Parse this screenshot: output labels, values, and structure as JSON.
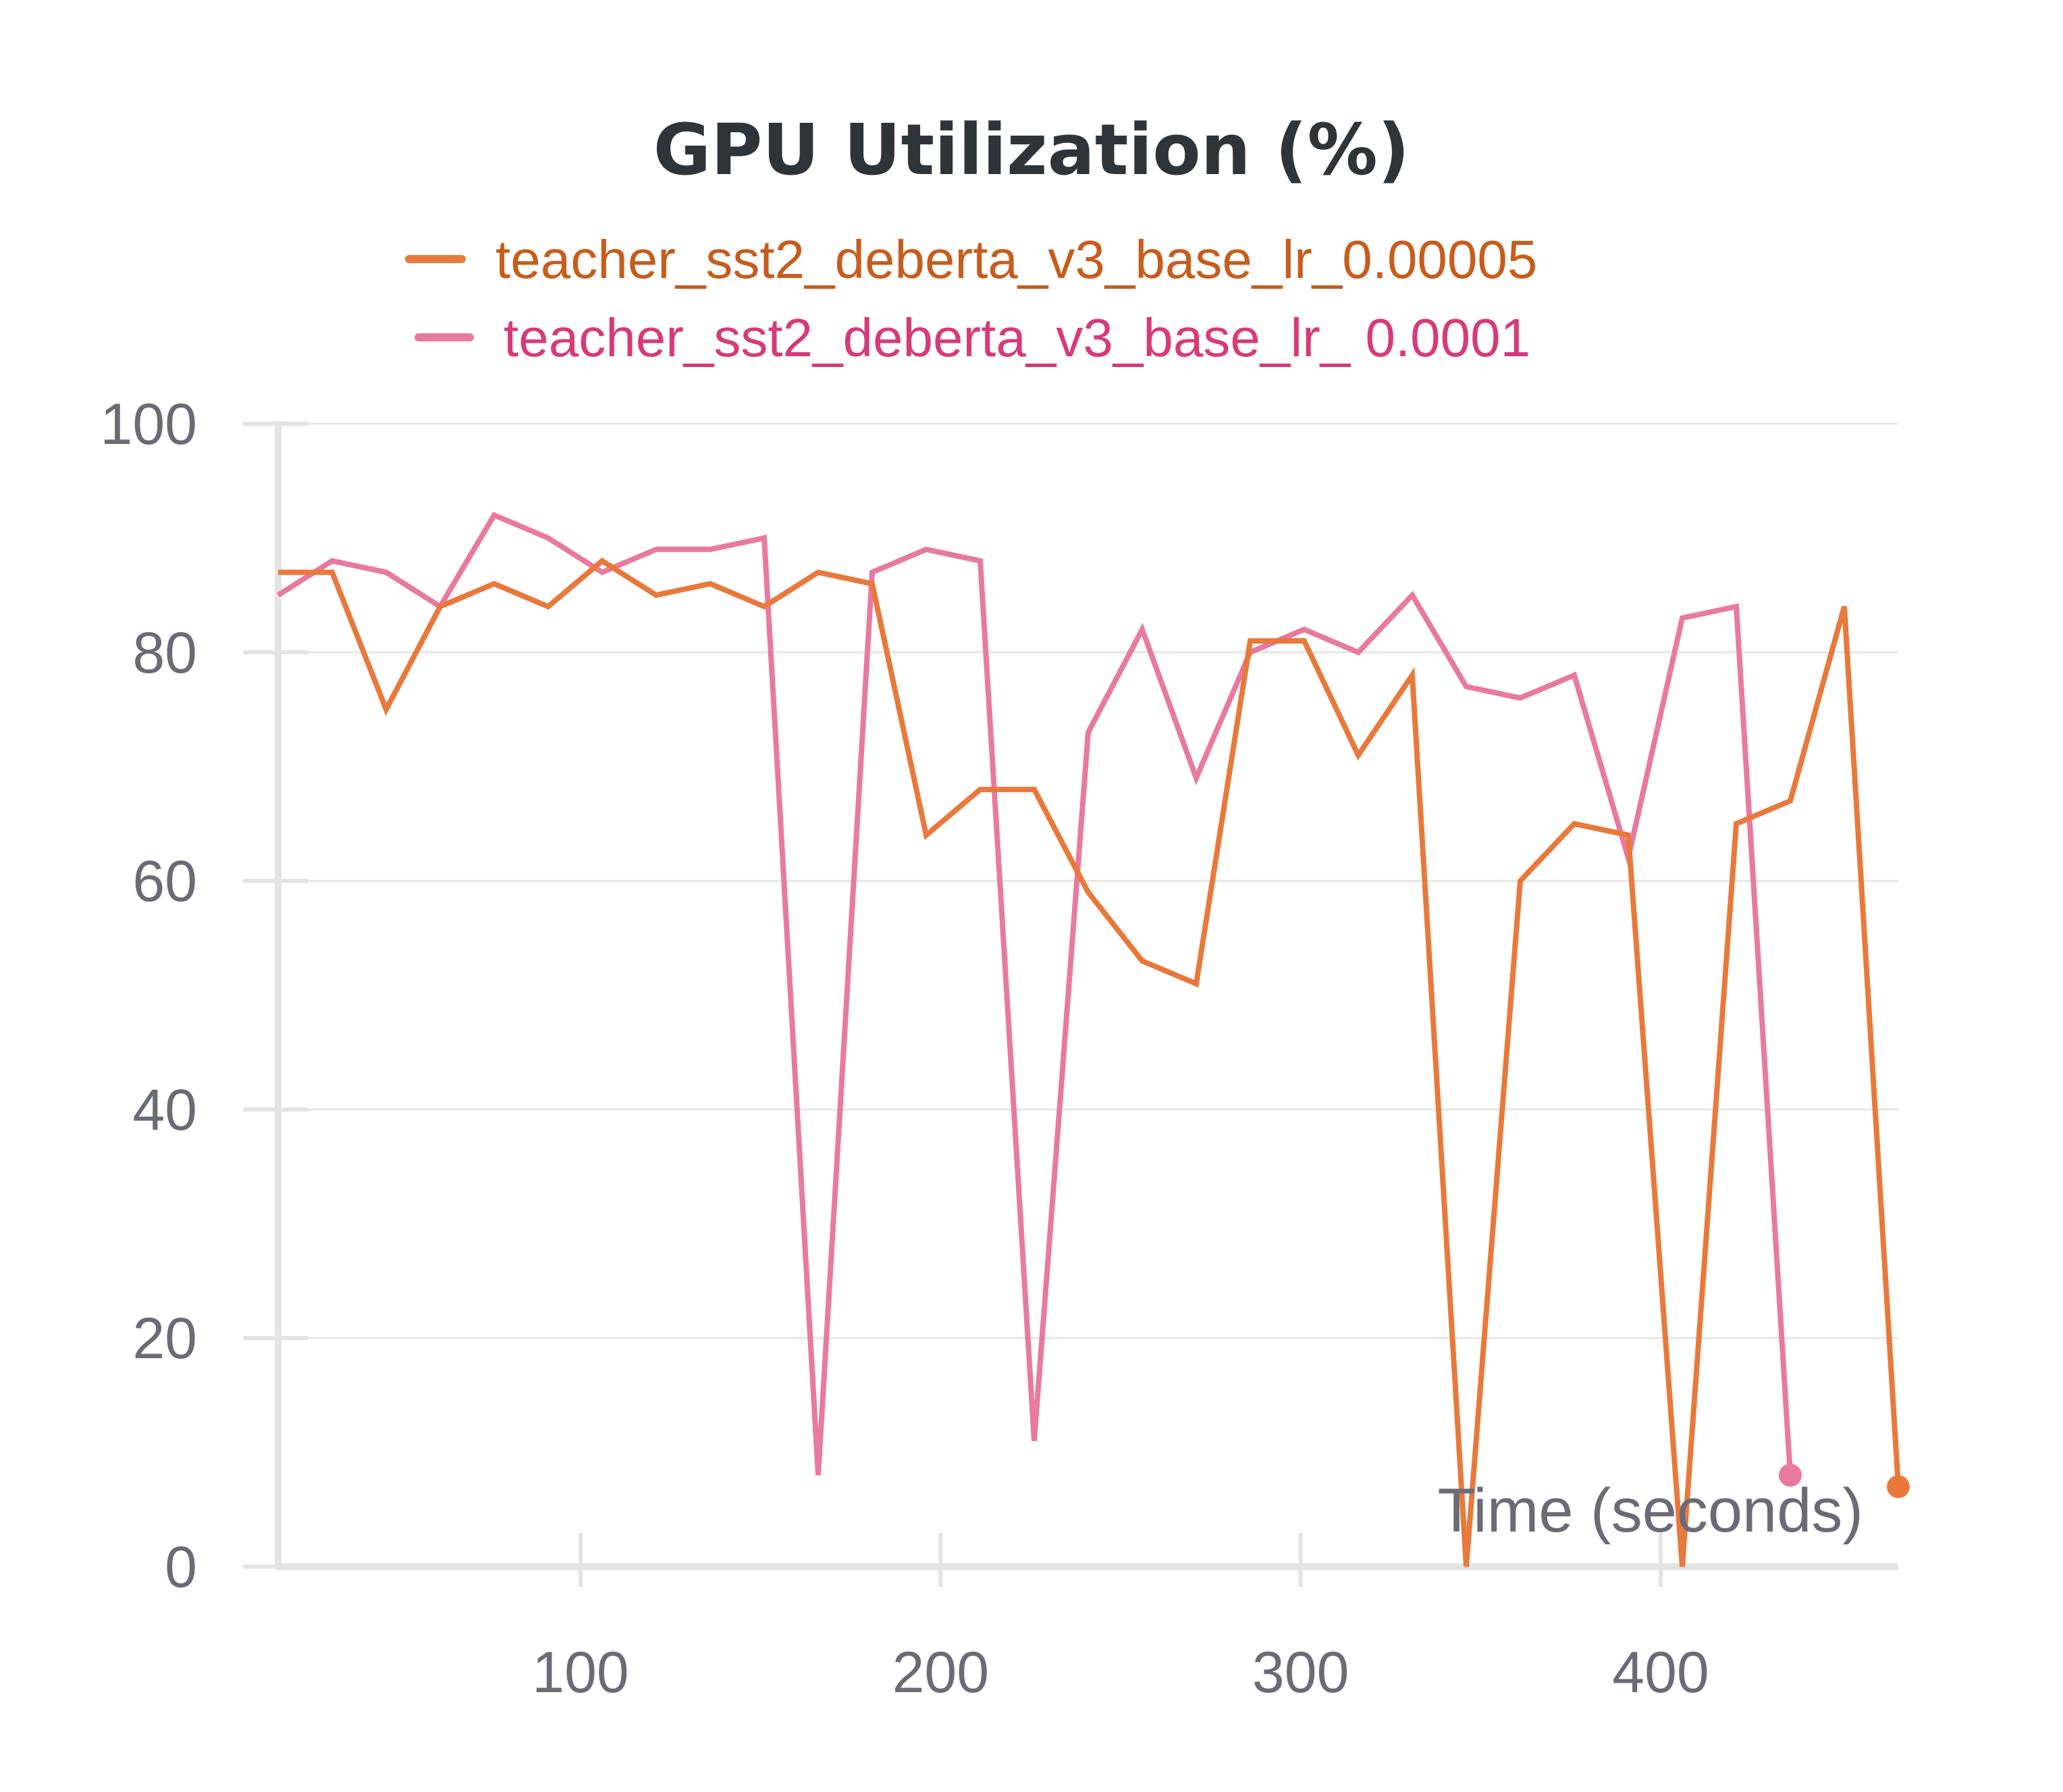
{
  "chart_data": {
    "type": "line",
    "title": "GPU Utilization (%)",
    "xlabel": "Time (seconds)",
    "ylabel": "",
    "xlim": [
      16,
      466
    ],
    "ylim": [
      0,
      100
    ],
    "grid": true,
    "legend_position": "top",
    "x_ticks": [
      100,
      200,
      300,
      400
    ],
    "y_ticks": [
      0,
      20,
      40,
      60,
      80,
      100
    ],
    "series": [
      {
        "name": "teacher_sst2_deberta_v3_base_lr_0.00005",
        "color": "#e8793b",
        "legend_text_color": "#c75c1c",
        "x": [
          16,
          31,
          46,
          61,
          76,
          91,
          106,
          121,
          136,
          151,
          166,
          181,
          196,
          211,
          226,
          241,
          256,
          271,
          286,
          301,
          316,
          331,
          346,
          361,
          376,
          391,
          406,
          421,
          436,
          451,
          466
        ],
        "y": [
          87,
          87,
          75,
          84,
          86,
          84,
          88,
          85,
          86,
          84,
          87,
          86,
          64,
          68,
          68,
          59,
          53,
          51,
          81,
          81,
          71,
          78,
          0,
          60,
          65,
          64,
          0,
          65,
          67,
          84,
          7
        ]
      },
      {
        "name": "teacher_sst2_deberta_v3_base_lr_ 0.0001",
        "color": "#e8799f",
        "legend_text_color": "#d63a79",
        "x": [
          16,
          31,
          46,
          61,
          76,
          91,
          106,
          121,
          136,
          151,
          166,
          181,
          196,
          211,
          226,
          241,
          256,
          271,
          286,
          301,
          316,
          331,
          346,
          361,
          376,
          391,
          406,
          421,
          436
        ],
        "y": [
          85,
          88,
          87,
          84,
          92,
          90,
          87,
          89,
          89,
          90,
          8,
          87,
          89,
          88,
          11,
          73,
          82,
          69,
          80,
          82,
          80,
          85,
          77,
          76,
          78,
          62,
          83,
          84,
          8
        ]
      }
    ]
  }
}
